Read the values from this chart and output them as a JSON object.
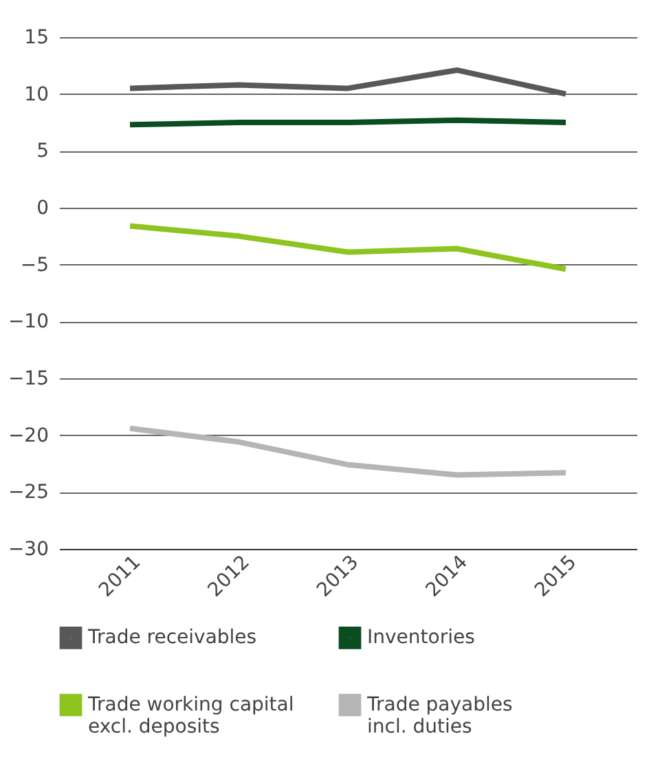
{
  "chart_data": {
    "type": "line",
    "categories": [
      "2011",
      "2012",
      "2013",
      "2014",
      "2015"
    ],
    "series": [
      {
        "name": "Trade receivables",
        "color": "#58585a",
        "values": [
          10.5,
          10.8,
          10.5,
          12.1,
          10.0
        ]
      },
      {
        "name": "Inventories",
        "color": "#0a4d1e",
        "values": [
          7.3,
          7.5,
          7.5,
          7.7,
          7.5
        ]
      },
      {
        "name": "Trade working capital\nexcl. deposits",
        "color": "#8fc31f",
        "values": [
          -1.6,
          -2.5,
          -3.9,
          -3.6,
          -5.4
        ]
      },
      {
        "name": "Trade payables\nincl. duties",
        "color": "#b5b5b5",
        "values": [
          -19.4,
          -20.6,
          -22.6,
          -23.5,
          -23.3
        ]
      }
    ],
    "ylim": [
      -30,
      15
    ],
    "yticks": [
      -30,
      -25,
      -20,
      -15,
      -10,
      -5,
      0,
      5,
      10,
      15
    ],
    "grid": "y",
    "legend": "bottom",
    "marker": "none",
    "line_style": "solid"
  }
}
